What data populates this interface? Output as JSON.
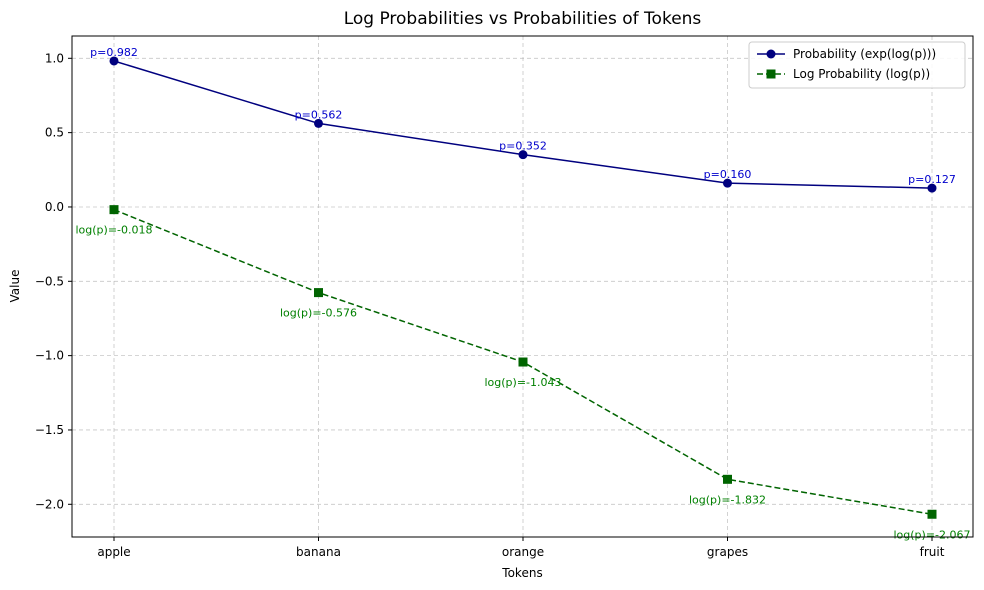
{
  "chart_data": {
    "type": "line",
    "title": "Log Probabilities vs Probabilities of Tokens",
    "xlabel": "Tokens",
    "ylabel": "Value",
    "categories": [
      "apple",
      "banana",
      "orange",
      "grapes",
      "fruit"
    ],
    "ylim": [
      -2.22,
      1.15
    ],
    "yticks": [
      1.0,
      0.5,
      0.0,
      -0.5,
      -1.0,
      -1.5,
      -2.0
    ],
    "ytick_labels": [
      "1.0",
      "0.5",
      "0.0",
      "−0.5",
      "−1.0",
      "−1.5",
      "−2.0"
    ],
    "grid": true,
    "legend_position": "top-right",
    "series": [
      {
        "name": "Probability (exp(log(p)))",
        "values": [
          0.982,
          0.562,
          0.352,
          0.16,
          0.127
        ],
        "labels": [
          "p=0.982",
          "p=0.562",
          "p=0.352",
          "p=0.160",
          "p=0.127"
        ],
        "color": "#00007f",
        "label_color": "#0000cc",
        "marker": "circle",
        "line_style": "solid"
      },
      {
        "name": "Log Probability (log(p))",
        "values": [
          -0.018,
          -0.576,
          -1.043,
          -1.832,
          -2.067
        ],
        "labels": [
          "log(p)=-0.018",
          "log(p)=-0.576",
          "log(p)=-1.043",
          "log(p)=-1.832",
          "log(p)=-2.067"
        ],
        "color": "#006400",
        "label_color": "#008000",
        "marker": "square",
        "line_style": "dashed"
      }
    ]
  }
}
